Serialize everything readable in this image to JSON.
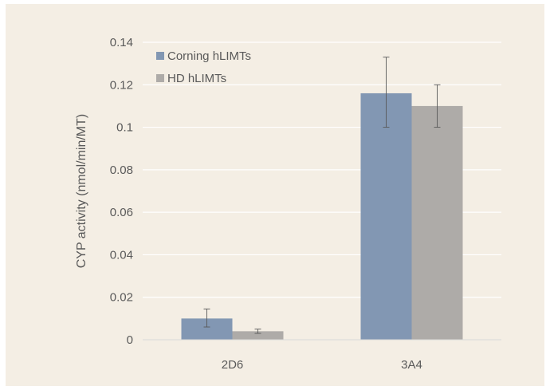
{
  "chart_data": {
    "type": "bar",
    "title": "",
    "xlabel": "",
    "ylabel": "CYP activity (nmol/min/MT)",
    "categories": [
      "2D6",
      "3A4"
    ],
    "ylim": [
      0,
      0.14
    ],
    "yticks": [
      0,
      0.02,
      0.04,
      0.06,
      0.08,
      0.1,
      0.12,
      0.14
    ],
    "ytick_labels": [
      "0",
      "0.02",
      "0.04",
      "0.06",
      "0.08",
      "0.1",
      "0.12",
      "0.14"
    ],
    "grid": true,
    "legend_position": "top-left",
    "series": [
      {
        "name": "Corning hLIMTs",
        "color": "#8297b3",
        "values": [
          0.01,
          0.116
        ],
        "error_low": [
          0.006,
          0.1
        ],
        "error_high": [
          0.0145,
          0.133
        ]
      },
      {
        "name": "HD hLIMTs",
        "color": "#aeaba8",
        "values": [
          0.004,
          0.11
        ],
        "error_low": [
          0.003,
          0.1
        ],
        "error_high": [
          0.005,
          0.12
        ]
      }
    ]
  }
}
